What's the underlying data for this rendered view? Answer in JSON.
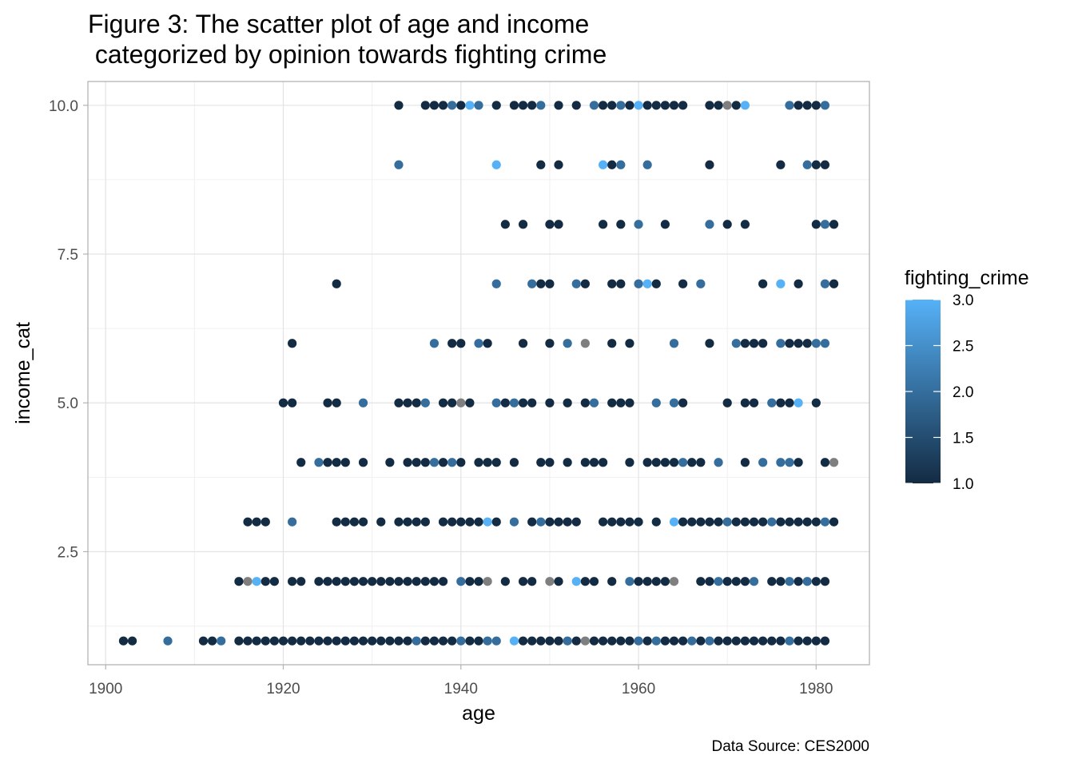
{
  "chart_data": {
    "type": "scatter",
    "title_lines": [
      "Figure 3: The scatter plot of age and income",
      " categorized by opinion towards fighting crime"
    ],
    "xlabel": "age",
    "ylabel": "income_cat",
    "caption": "Data Source: CES2000",
    "xlim": [
      1898,
      1986
    ],
    "ylim": [
      0.6,
      10.4
    ],
    "x_ticks": [
      1900,
      1920,
      1940,
      1960,
      1980
    ],
    "x_tick_labels": [
      "1900",
      "1920",
      "1940",
      "1960",
      "1980"
    ],
    "y_ticks": [
      2.5,
      5.0,
      7.5,
      10.0
    ],
    "y_tick_labels": [
      "2.5",
      "5.0",
      "7.5",
      "10.0"
    ],
    "grid": true,
    "legend": {
      "title": "fighting_crime",
      "placement": "right",
      "breaks": [
        1.0,
        1.5,
        2.0,
        2.5,
        3.0
      ],
      "labels": [
        "1.0",
        "1.5",
        "2.0",
        "2.5",
        "3.0"
      ],
      "low_color": "#132B43",
      "high_color": "#56B1F7",
      "na_color": "#7F7F7F"
    },
    "points": [
      [
        1933,
        10,
        1
      ],
      [
        1936,
        10,
        1
      ],
      [
        1937,
        10,
        1
      ],
      [
        1938,
        10,
        1
      ],
      [
        1939,
        10,
        2
      ],
      [
        1940,
        10,
        1
      ],
      [
        1941,
        10,
        3
      ],
      [
        1942,
        10,
        2
      ],
      [
        1944,
        10,
        1
      ],
      [
        1946,
        10,
        1
      ],
      [
        1947,
        10,
        1
      ],
      [
        1948,
        10,
        1
      ],
      [
        1949,
        10,
        2
      ],
      [
        1951,
        10,
        1
      ],
      [
        1953,
        10,
        1
      ],
      [
        1955,
        10,
        2
      ],
      [
        1956,
        10,
        1
      ],
      [
        1957,
        10,
        1
      ],
      [
        1958,
        10,
        2
      ],
      [
        1959,
        10,
        1
      ],
      [
        1960,
        10,
        3
      ],
      [
        1961,
        10,
        1
      ],
      [
        1962,
        10,
        1
      ],
      [
        1963,
        10,
        1
      ],
      [
        1964,
        10,
        1
      ],
      [
        1965,
        10,
        1
      ],
      [
        1968,
        10,
        1
      ],
      [
        1969,
        10,
        1
      ],
      [
        1970,
        10,
        null
      ],
      [
        1971,
        10,
        1
      ],
      [
        1972,
        10,
        3
      ],
      [
        1977,
        10,
        2
      ],
      [
        1978,
        10,
        1
      ],
      [
        1979,
        10,
        1
      ],
      [
        1980,
        10,
        1
      ],
      [
        1981,
        10,
        2
      ],
      [
        1933,
        9,
        2
      ],
      [
        1944,
        9,
        3
      ],
      [
        1949,
        9,
        1
      ],
      [
        1951,
        9,
        1
      ],
      [
        1956,
        9,
        3
      ],
      [
        1957,
        9,
        1
      ],
      [
        1958,
        9,
        2
      ],
      [
        1961,
        9,
        2
      ],
      [
        1968,
        9,
        1
      ],
      [
        1976,
        9,
        1
      ],
      [
        1979,
        9,
        2
      ],
      [
        1980,
        9,
        1
      ],
      [
        1981,
        9,
        1
      ],
      [
        1945,
        8,
        1
      ],
      [
        1947,
        8,
        1
      ],
      [
        1950,
        8,
        1
      ],
      [
        1951,
        8,
        1
      ],
      [
        1956,
        8,
        1
      ],
      [
        1958,
        8,
        1
      ],
      [
        1960,
        8,
        2
      ],
      [
        1963,
        8,
        1
      ],
      [
        1968,
        8,
        2
      ],
      [
        1970,
        8,
        1
      ],
      [
        1972,
        8,
        1
      ],
      [
        1980,
        8,
        1
      ],
      [
        1981,
        8,
        2
      ],
      [
        1982,
        8,
        1
      ],
      [
        1926,
        7,
        1
      ],
      [
        1944,
        7,
        2
      ],
      [
        1948,
        7,
        2
      ],
      [
        1949,
        7,
        1
      ],
      [
        1950,
        7,
        1
      ],
      [
        1953,
        7,
        2
      ],
      [
        1954,
        7,
        1
      ],
      [
        1957,
        7,
        1
      ],
      [
        1958,
        7,
        1
      ],
      [
        1960,
        7,
        2
      ],
      [
        1961,
        7,
        3
      ],
      [
        1962,
        7,
        1
      ],
      [
        1965,
        7,
        1
      ],
      [
        1967,
        7,
        2
      ],
      [
        1974,
        7,
        1
      ],
      [
        1976,
        7,
        3
      ],
      [
        1978,
        7,
        1
      ],
      [
        1981,
        7,
        2
      ],
      [
        1982,
        7,
        1
      ],
      [
        1921,
        6,
        1
      ],
      [
        1937,
        6,
        2
      ],
      [
        1939,
        6,
        1
      ],
      [
        1940,
        6,
        1
      ],
      [
        1942,
        6,
        2
      ],
      [
        1943,
        6,
        1
      ],
      [
        1947,
        6,
        1
      ],
      [
        1950,
        6,
        1
      ],
      [
        1952,
        6,
        2
      ],
      [
        1954,
        6,
        null
      ],
      [
        1957,
        6,
        1
      ],
      [
        1959,
        6,
        1
      ],
      [
        1964,
        6,
        2
      ],
      [
        1968,
        6,
        1
      ],
      [
        1971,
        6,
        2
      ],
      [
        1972,
        6,
        1
      ],
      [
        1973,
        6,
        1
      ],
      [
        1974,
        6,
        1
      ],
      [
        1976,
        6,
        2
      ],
      [
        1977,
        6,
        1
      ],
      [
        1978,
        6,
        1
      ],
      [
        1979,
        6,
        1
      ],
      [
        1980,
        6,
        2
      ],
      [
        1981,
        6,
        2
      ],
      [
        1920,
        5,
        1
      ],
      [
        1921,
        5,
        1
      ],
      [
        1925,
        5,
        1
      ],
      [
        1926,
        5,
        1
      ],
      [
        1929,
        5,
        2
      ],
      [
        1933,
        5,
        1
      ],
      [
        1934,
        5,
        1
      ],
      [
        1935,
        5,
        1
      ],
      [
        1936,
        5,
        2
      ],
      [
        1938,
        5,
        1
      ],
      [
        1939,
        5,
        1
      ],
      [
        1940,
        5,
        null
      ],
      [
        1941,
        5,
        1
      ],
      [
        1944,
        5,
        2
      ],
      [
        1945,
        5,
        1
      ],
      [
        1946,
        5,
        2
      ],
      [
        1947,
        5,
        1
      ],
      [
        1948,
        5,
        1
      ],
      [
        1950,
        5,
        1
      ],
      [
        1952,
        5,
        1
      ],
      [
        1954,
        5,
        1
      ],
      [
        1955,
        5,
        2
      ],
      [
        1957,
        5,
        1
      ],
      [
        1958,
        5,
        1
      ],
      [
        1959,
        5,
        1
      ],
      [
        1962,
        5,
        2
      ],
      [
        1964,
        5,
        2
      ],
      [
        1965,
        5,
        1
      ],
      [
        1970,
        5,
        1
      ],
      [
        1972,
        5,
        1
      ],
      [
        1973,
        5,
        1
      ],
      [
        1975,
        5,
        2
      ],
      [
        1976,
        5,
        1
      ],
      [
        1977,
        5,
        1
      ],
      [
        1978,
        5,
        3
      ],
      [
        1980,
        5,
        1
      ],
      [
        1922,
        4,
        1
      ],
      [
        1924,
        4,
        2
      ],
      [
        1925,
        4,
        1
      ],
      [
        1926,
        4,
        1
      ],
      [
        1927,
        4,
        1
      ],
      [
        1929,
        4,
        1
      ],
      [
        1932,
        4,
        1
      ],
      [
        1934,
        4,
        1
      ],
      [
        1935,
        4,
        1
      ],
      [
        1936,
        4,
        1
      ],
      [
        1937,
        4,
        2
      ],
      [
        1938,
        4,
        1
      ],
      [
        1939,
        4,
        2
      ],
      [
        1940,
        4,
        1
      ],
      [
        1942,
        4,
        1
      ],
      [
        1943,
        4,
        1
      ],
      [
        1944,
        4,
        1
      ],
      [
        1946,
        4,
        1
      ],
      [
        1949,
        4,
        1
      ],
      [
        1950,
        4,
        1
      ],
      [
        1952,
        4,
        1
      ],
      [
        1954,
        4,
        1
      ],
      [
        1955,
        4,
        1
      ],
      [
        1956,
        4,
        1
      ],
      [
        1959,
        4,
        1
      ],
      [
        1961,
        4,
        1
      ],
      [
        1962,
        4,
        1
      ],
      [
        1963,
        4,
        1
      ],
      [
        1964,
        4,
        1
      ],
      [
        1965,
        4,
        2
      ],
      [
        1966,
        4,
        1
      ],
      [
        1967,
        4,
        1
      ],
      [
        1969,
        4,
        2
      ],
      [
        1972,
        4,
        1
      ],
      [
        1974,
        4,
        2
      ],
      [
        1976,
        4,
        2
      ],
      [
        1977,
        4,
        2
      ],
      [
        1978,
        4,
        1
      ],
      [
        1981,
        4,
        1
      ],
      [
        1982,
        4,
        null
      ],
      [
        1916,
        3,
        1
      ],
      [
        1917,
        3,
        1
      ],
      [
        1918,
        3,
        1
      ],
      [
        1921,
        3,
        2
      ],
      [
        1926,
        3,
        1
      ],
      [
        1927,
        3,
        1
      ],
      [
        1928,
        3,
        1
      ],
      [
        1929,
        3,
        1
      ],
      [
        1931,
        3,
        1
      ],
      [
        1933,
        3,
        1
      ],
      [
        1934,
        3,
        1
      ],
      [
        1935,
        3,
        1
      ],
      [
        1936,
        3,
        1
      ],
      [
        1938,
        3,
        1
      ],
      [
        1939,
        3,
        1
      ],
      [
        1940,
        3,
        1
      ],
      [
        1941,
        3,
        1
      ],
      [
        1942,
        3,
        1
      ],
      [
        1943,
        3,
        3
      ],
      [
        1944,
        3,
        1
      ],
      [
        1946,
        3,
        2
      ],
      [
        1948,
        3,
        1
      ],
      [
        1949,
        3,
        2
      ],
      [
        1950,
        3,
        1
      ],
      [
        1951,
        3,
        1
      ],
      [
        1952,
        3,
        1
      ],
      [
        1953,
        3,
        1
      ],
      [
        1956,
        3,
        1
      ],
      [
        1957,
        3,
        1
      ],
      [
        1958,
        3,
        1
      ],
      [
        1959,
        3,
        1
      ],
      [
        1960,
        3,
        1
      ],
      [
        1962,
        3,
        1
      ],
      [
        1964,
        3,
        3
      ],
      [
        1965,
        3,
        1
      ],
      [
        1966,
        3,
        1
      ],
      [
        1967,
        3,
        1
      ],
      [
        1968,
        3,
        1
      ],
      [
        1969,
        3,
        1
      ],
      [
        1970,
        3,
        2
      ],
      [
        1971,
        3,
        1
      ],
      [
        1972,
        3,
        1
      ],
      [
        1973,
        3,
        1
      ],
      [
        1974,
        3,
        1
      ],
      [
        1975,
        3,
        2
      ],
      [
        1976,
        3,
        1
      ],
      [
        1977,
        3,
        1
      ],
      [
        1978,
        3,
        1
      ],
      [
        1979,
        3,
        1
      ],
      [
        1980,
        3,
        1
      ],
      [
        1981,
        3,
        2
      ],
      [
        1982,
        3,
        1
      ],
      [
        1915,
        2,
        1
      ],
      [
        1916,
        2,
        null
      ],
      [
        1917,
        2,
        3
      ],
      [
        1918,
        2,
        1
      ],
      [
        1919,
        2,
        1
      ],
      [
        1921,
        2,
        1
      ],
      [
        1922,
        2,
        1
      ],
      [
        1924,
        2,
        1
      ],
      [
        1925,
        2,
        1
      ],
      [
        1926,
        2,
        1
      ],
      [
        1927,
        2,
        1
      ],
      [
        1928,
        2,
        1
      ],
      [
        1929,
        2,
        1
      ],
      [
        1930,
        2,
        1
      ],
      [
        1931,
        2,
        1
      ],
      [
        1932,
        2,
        1
      ],
      [
        1933,
        2,
        1
      ],
      [
        1934,
        2,
        1
      ],
      [
        1935,
        2,
        1
      ],
      [
        1936,
        2,
        1
      ],
      [
        1937,
        2,
        1
      ],
      [
        1938,
        2,
        1
      ],
      [
        1940,
        2,
        2
      ],
      [
        1941,
        2,
        1
      ],
      [
        1942,
        2,
        1
      ],
      [
        1943,
        2,
        null
      ],
      [
        1945,
        2,
        1
      ],
      [
        1947,
        2,
        1
      ],
      [
        1948,
        2,
        1
      ],
      [
        1950,
        2,
        null
      ],
      [
        1951,
        2,
        1
      ],
      [
        1953,
        2,
        3
      ],
      [
        1954,
        2,
        1
      ],
      [
        1955,
        2,
        1
      ],
      [
        1957,
        2,
        1
      ],
      [
        1959,
        2,
        2
      ],
      [
        1960,
        2,
        1
      ],
      [
        1961,
        2,
        1
      ],
      [
        1962,
        2,
        1
      ],
      [
        1963,
        2,
        1
      ],
      [
        1964,
        2,
        null
      ],
      [
        1967,
        2,
        1
      ],
      [
        1968,
        2,
        1
      ],
      [
        1969,
        2,
        2
      ],
      [
        1970,
        2,
        1
      ],
      [
        1971,
        2,
        1
      ],
      [
        1972,
        2,
        1
      ],
      [
        1973,
        2,
        2
      ],
      [
        1975,
        2,
        1
      ],
      [
        1976,
        2,
        1
      ],
      [
        1977,
        2,
        2
      ],
      [
        1978,
        2,
        1
      ],
      [
        1979,
        2,
        2
      ],
      [
        1980,
        2,
        1
      ],
      [
        1981,
        2,
        1
      ],
      [
        1902,
        1,
        1
      ],
      [
        1903,
        1,
        1
      ],
      [
        1907,
        1,
        2
      ],
      [
        1911,
        1,
        1
      ],
      [
        1912,
        1,
        1
      ],
      [
        1913,
        1,
        2
      ],
      [
        1915,
        1,
        1
      ],
      [
        1916,
        1,
        1
      ],
      [
        1917,
        1,
        1
      ],
      [
        1918,
        1,
        1
      ],
      [
        1919,
        1,
        1
      ],
      [
        1920,
        1,
        1
      ],
      [
        1921,
        1,
        1
      ],
      [
        1922,
        1,
        1
      ],
      [
        1923,
        1,
        1
      ],
      [
        1924,
        1,
        1
      ],
      [
        1925,
        1,
        1
      ],
      [
        1926,
        1,
        1
      ],
      [
        1927,
        1,
        1
      ],
      [
        1928,
        1,
        1
      ],
      [
        1929,
        1,
        1
      ],
      [
        1930,
        1,
        1
      ],
      [
        1931,
        1,
        1
      ],
      [
        1932,
        1,
        1
      ],
      [
        1933,
        1,
        1
      ],
      [
        1934,
        1,
        1
      ],
      [
        1935,
        1,
        2
      ],
      [
        1936,
        1,
        1
      ],
      [
        1937,
        1,
        1
      ],
      [
        1938,
        1,
        1
      ],
      [
        1939,
        1,
        1
      ],
      [
        1940,
        1,
        2
      ],
      [
        1941,
        1,
        1
      ],
      [
        1942,
        1,
        1
      ],
      [
        1943,
        1,
        2
      ],
      [
        1944,
        1,
        2
      ],
      [
        1946,
        1,
        3
      ],
      [
        1947,
        1,
        1
      ],
      [
        1948,
        1,
        1
      ],
      [
        1949,
        1,
        1
      ],
      [
        1950,
        1,
        1
      ],
      [
        1951,
        1,
        1
      ],
      [
        1952,
        1,
        2
      ],
      [
        1953,
        1,
        1
      ],
      [
        1954,
        1,
        null
      ],
      [
        1955,
        1,
        1
      ],
      [
        1956,
        1,
        1
      ],
      [
        1957,
        1,
        1
      ],
      [
        1958,
        1,
        1
      ],
      [
        1959,
        1,
        1
      ],
      [
        1960,
        1,
        2
      ],
      [
        1961,
        1,
        1
      ],
      [
        1962,
        1,
        2
      ],
      [
        1963,
        1,
        1
      ],
      [
        1964,
        1,
        1
      ],
      [
        1965,
        1,
        1
      ],
      [
        1966,
        1,
        2
      ],
      [
        1967,
        1,
        1
      ],
      [
        1968,
        1,
        2
      ],
      [
        1969,
        1,
        1
      ],
      [
        1970,
        1,
        1
      ],
      [
        1971,
        1,
        1
      ],
      [
        1972,
        1,
        1
      ],
      [
        1973,
        1,
        1
      ],
      [
        1974,
        1,
        1
      ],
      [
        1975,
        1,
        1
      ],
      [
        1976,
        1,
        1
      ],
      [
        1977,
        1,
        2
      ],
      [
        1978,
        1,
        1
      ],
      [
        1979,
        1,
        1
      ],
      [
        1980,
        1,
        1
      ],
      [
        1981,
        1,
        1
      ]
    ]
  }
}
